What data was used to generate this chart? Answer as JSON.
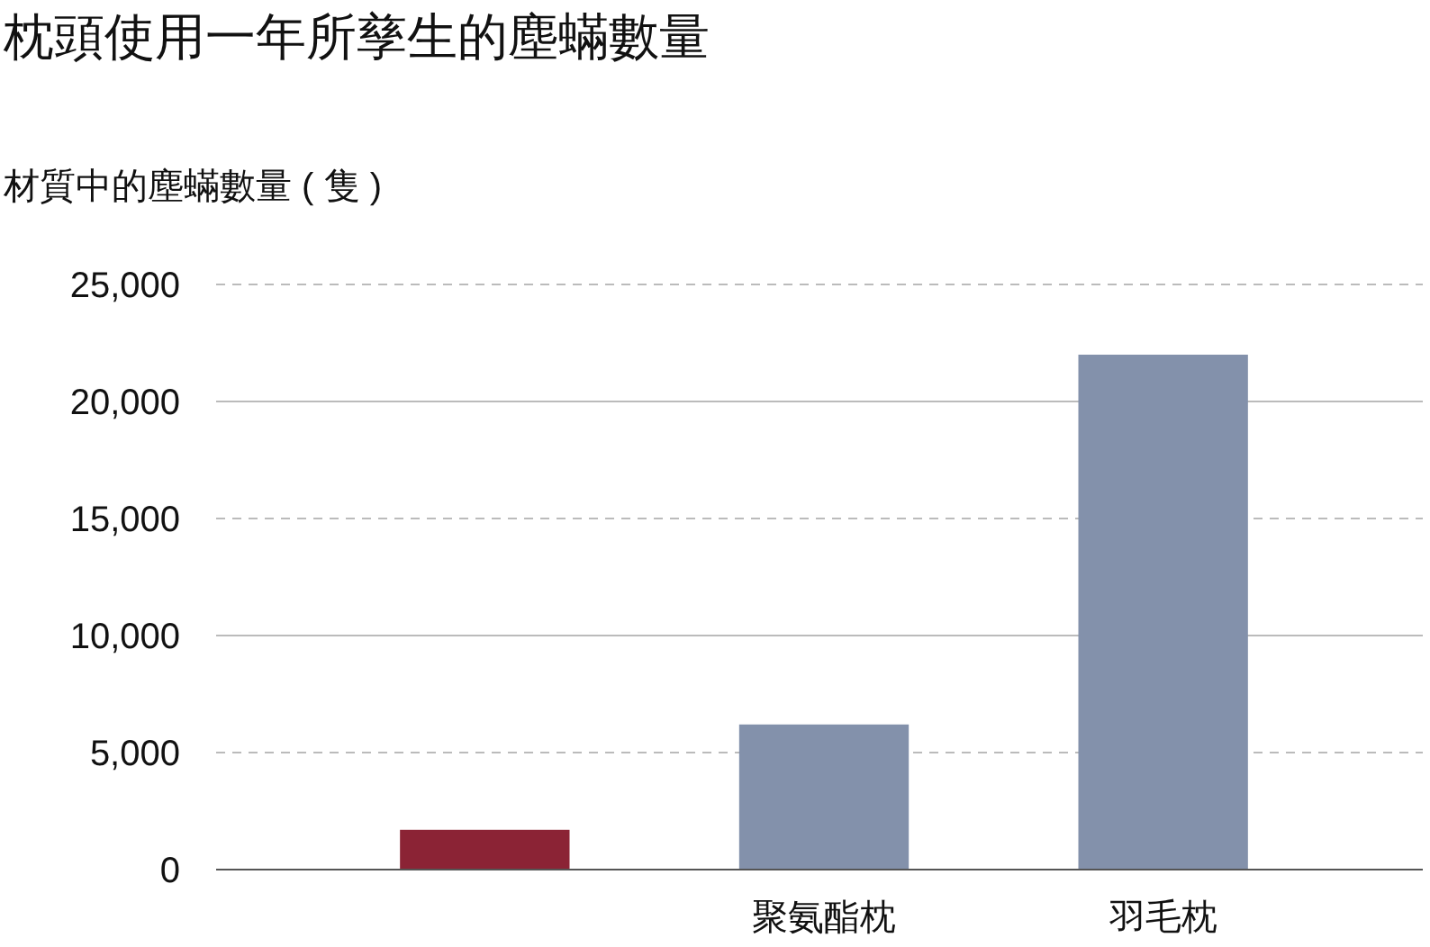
{
  "chart_data": {
    "type": "bar",
    "title": "枕頭使用一年所孳生的塵蟎數量",
    "ylabel": "材質中的塵蟎數量 ( 隻 )",
    "categories": [
      null,
      "聚氨酯枕",
      "羽毛枕"
    ],
    "values": [
      1700,
      6200,
      22000
    ],
    "colors": [
      "#8b2335",
      "#8391ab",
      "#8391ab"
    ],
    "ylim": [
      0,
      25000
    ],
    "yticks": [
      {
        "value": 0,
        "label": "0"
      },
      {
        "value": 5000,
        "label": "5,000"
      },
      {
        "value": 10000,
        "label": "10,000"
      },
      {
        "value": 15000,
        "label": "15,000"
      },
      {
        "value": 20000,
        "label": "20,000"
      },
      {
        "value": 25000,
        "label": "25,000"
      }
    ],
    "grid": "y"
  }
}
